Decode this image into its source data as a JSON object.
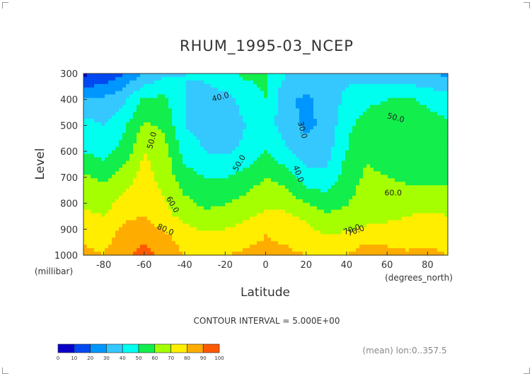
{
  "chart_data": {
    "type": "heatmap",
    "title": "RHUM_1995-03_NCEP",
    "xlabel": "Latitude",
    "xunit": "(degrees_north)",
    "ylabel": "Level",
    "yunit": "(millibar)",
    "x_ticks": [
      "-80",
      "-60",
      "-40",
      "-20",
      "0",
      "20",
      "40",
      "60",
      "80"
    ],
    "y_ticks": [
      "300",
      "400",
      "500",
      "600",
      "700",
      "800",
      "900",
      "1000"
    ],
    "xlim": [
      -90,
      90
    ],
    "ylim": [
      1000,
      300
    ],
    "x_axis_reversed": false,
    "y_axis_inverted": true,
    "latitudes": [
      -90,
      -80,
      -70,
      -60,
      -50,
      -40,
      -30,
      -20,
      -10,
      0,
      10,
      20,
      30,
      40,
      50,
      60,
      70,
      80,
      90
    ],
    "levels": [
      1000,
      925,
      850,
      700,
      600,
      500,
      400,
      300
    ],
    "values": [
      [
        82,
        80,
        88,
        94,
        86,
        80,
        78,
        80,
        82,
        83,
        82,
        80,
        78,
        80,
        86,
        84,
        82,
        83,
        80
      ],
      [
        78,
        76,
        84,
        88,
        82,
        75,
        72,
        73,
        76,
        80,
        78,
        74,
        70,
        72,
        76,
        75,
        74,
        76,
        74
      ],
      [
        72,
        70,
        78,
        80,
        73,
        67,
        62,
        64,
        68,
        72,
        72,
        68,
        62,
        62,
        65,
        68,
        70,
        72,
        70
      ],
      [
        62,
        58,
        65,
        74,
        66,
        54,
        50,
        50,
        54,
        60,
        56,
        44,
        42,
        55,
        62,
        60,
        58,
        56,
        58
      ],
      [
        50,
        46,
        54,
        70,
        64,
        46,
        40,
        38,
        42,
        50,
        42,
        34,
        36,
        50,
        58,
        56,
        55,
        55,
        54
      ],
      [
        45,
        40,
        48,
        62,
        58,
        40,
        36,
        34,
        40,
        46,
        34,
        28,
        32,
        48,
        54,
        55,
        55,
        54,
        52
      ],
      [
        30,
        32,
        38,
        52,
        52,
        40,
        36,
        36,
        44,
        50,
        32,
        28,
        34,
        42,
        48,
        50,
        52,
        48,
        45
      ],
      [
        8,
        12,
        20,
        30,
        38,
        40,
        42,
        48,
        52,
        52,
        40,
        36,
        40,
        38,
        36,
        34,
        32,
        30,
        28
      ]
    ],
    "contour_labels": [
      "40.0",
      "30.0",
      "50.0",
      "50.0",
      "40.0",
      "50.0",
      "70.0",
      "60.0",
      "60.0",
      "80.0",
      "70.0"
    ],
    "colorbar": {
      "ticks": [
        "0",
        "10",
        "20",
        "30",
        "40",
        "50",
        "60",
        "70",
        "80",
        "90",
        "100"
      ],
      "colors": [
        "#9400b0",
        "#0a00c8",
        "#0048f0",
        "#0096ff",
        "#34c8ff",
        "#00ffee",
        "#12ee4c",
        "#a6ff00",
        "#ffee00",
        "#ffac00",
        "#ff5a00",
        "#ff0000"
      ]
    }
  },
  "contour_interval_text": "CONTOUR INTERVAL = 5.000E+00",
  "mean_note": "(mean) lon:0..357.5"
}
